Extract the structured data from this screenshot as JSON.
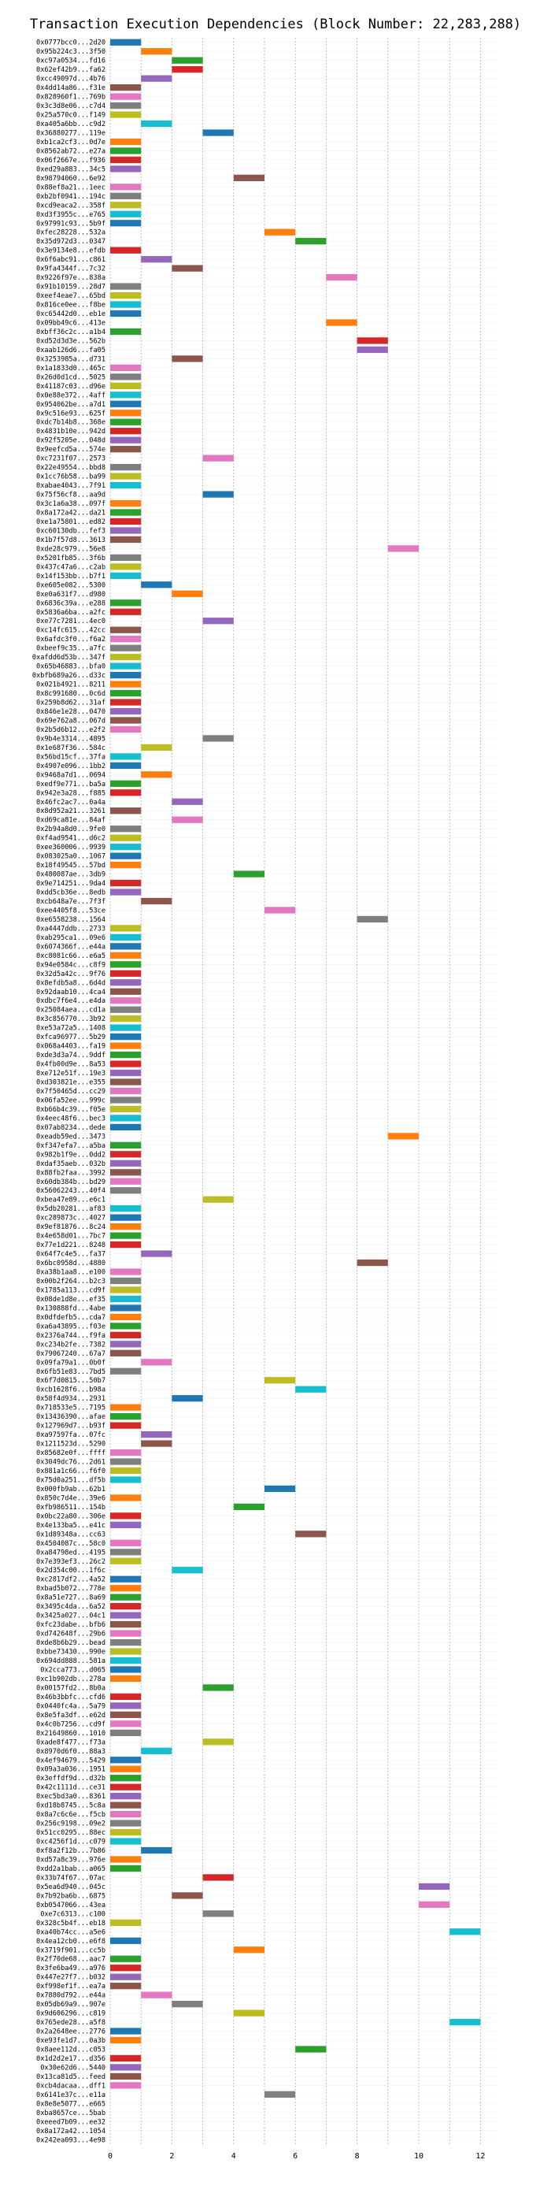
{
  "chart_data": {
    "type": "bar",
    "orientation": "horizontal-gantt",
    "title": "Transaction Execution Dependencies (Block Number: 22,283,288)",
    "xlabel": "",
    "ylabel": "",
    "xlim": [
      0,
      12.5
    ],
    "xticks": [
      0,
      2,
      4,
      6,
      8,
      10,
      12
    ],
    "grid": true,
    "legend": "none",
    "bar_width": 1,
    "palette": {
      "blue": "#1f77b4",
      "orange": "#ff7f0e",
      "green": "#2ca02c",
      "red": "#d62728",
      "purple": "#9467bd",
      "brown": "#8c564b",
      "pink": "#e377c2",
      "gray": "#7f7f7f",
      "olive": "#bcbd22",
      "cyan": "#17becf"
    },
    "colors": [
      "#1f77b4",
      "#ff7f0e",
      "#2ca02c",
      "#d62728",
      "#9467bd",
      "#8c564b",
      "#e377c2",
      "#7f7f7f",
      "#bcbd22",
      "#17becf"
    ],
    "transactions": [
      "0x0777bcc0...2d20",
      "0x95b224c3...3f50",
      "0xc97a0534...fd16",
      "0x62ef42b9...fa62",
      "0xcc49097d...4b76",
      "0x4dd14a86...f31e",
      "0x828960f1...769b",
      "0x3c3d8e06...c7d4",
      "0x25a570c0...f149",
      "0xa405a6bb...c9d2",
      "0x36880277...119e",
      "0xb1ca2cf3...0d7e",
      "0x8562ab72...e27a",
      "0x06f2667e...f936",
      "0xed29a883...34c5",
      "0x98794060...6e92",
      "0x88ef8a21...1eec",
      "0xb2bf0941...194c",
      "0xcd9eaca2...358f",
      "0xd3f3955c...e765",
      "0x97991c93...5b9f",
      "0xfec28228...532a",
      "0x35d972d3...0347",
      "0x3e9134e8...efdb",
      "0x6f6abc91...c861",
      "0x9fa4344f...7c32",
      "0x9226f97e...838a",
      "0x91b10159...28d7",
      "0xeef4eae7...65bd",
      "0x816ce0ee...f8be",
      "0xc65442d0...eb1e",
      "0x09bb49c6...413e",
      "0xbff36c2c...a1b4",
      "0xd52d3d3e...562b",
      "0xaab126d6...fa05",
      "0x3253985a...d731",
      "0x1a1833d0...465c",
      "0x26d0d1cd...5025",
      "0x41187c03...d96e",
      "0x0e88e372...4aff",
      "0x954062be...a7d1",
      "0x9c516e93...625f",
      "0xdc7b14b8...368e",
      "0x4831b10e...942d",
      "0x92f5205e...048d",
      "0x9eefcd5a...574e",
      "0xc7231f07...2573",
      "0x22e49554...bbd8",
      "0x1cc76b58...ba99",
      "0xabae4043...7f91",
      "0x75f56cf8...aa9d",
      "0x3c1a6a38...097f",
      "0x8a172a42...da21",
      "0xe1a75801...ed82",
      "0xc60130db...fef3",
      "0x1b7f57d8...3613",
      "0xde28c979...56e8",
      "0x5201fb85...3f6b",
      "0x437c47a6...c2ab",
      "0x14f153bb...b7f1",
      "0xe605e082...5300",
      "0xe0a631f7...d980",
      "0x6836c39a...e288",
      "0x5836a6ba...a2fc",
      "0xe77c7281...4ec0",
      "0xc14fc615...42cc",
      "0x6afdc3f0...f6a2",
      "0xbeef9c35...a7fc",
      "0xafdd6d53b...347f",
      "0x65b46883...bfa0",
      "0xbfb689a26...d33c",
      "0x021b4921...8211",
      "0x8c991680...0c6d",
      "0x259b8d62...31af",
      "0x846e1e28...0470",
      "0x69e762a8...067d",
      "0x2b5d6b12...e2f2",
      "0x9b4e3314...4895",
      "0x1e687f36...584c",
      "0x56bd15cf...37fa",
      "0x4907e096...1bb2",
      "0x9468a7d1...0694",
      "0xedf9e771...ba5a",
      "0x942e3a28...f885",
      "0x46fc2ac7...0a4a",
      "0x8d952a21...3261",
      "0xd69ca81e...84af",
      "0x2b94a8d0...9fe0",
      "0xf4ad9541...d6c2",
      "0xee360006...9939",
      "0x083025a0...1067",
      "0x18f49545...57bd",
      "0x480087ae...3db9",
      "0x9e714251...9da4",
      "0xdd5cb36e...8edb",
      "0xcb648a7e...7f3f",
      "0xee4405f8...53ce",
      "0xe6558238...1564",
      "0xa4447ddb...2733",
      "0xab295ca1...09e6",
      "0x6074366f...e44a",
      "0xc8081c66...e6a5",
      "0x94e0584c...c8f9",
      "0x32d5a42c...9f76",
      "0x8efdb5a8...6d4d",
      "0x92daab10...4ca4",
      "0xdbc7f6e4...e4da",
      "0x25084aea...cd1a",
      "0x3c856770...3b92",
      "0xe53a72a5...1408",
      "0xfca96977...5b29",
      "0x068a4403...fa19",
      "0xde3d3a74...9ddf",
      "0x4fb00d9e...8a53",
      "0xe712e51f...19e3",
      "0xd303821e...e355",
      "0x7f50465d...cc29",
      "0x06fa52ee...999c",
      "0xb66b4c39...f05e",
      "0x4eec48f6...bec3",
      "0x07ab8234...dede",
      "0xeadb59ed...3473",
      "0xf347efa7...a5ba",
      "0x982b1f9e...0dd2",
      "0xdaf35aeb...032b",
      "0x88fb2faa...3992",
      "0x60db384b...bd29",
      "0x56062243...40f4",
      "0xbea47e89...e6c1",
      "0x5db20281...af83",
      "0xc289873c...4027",
      "0x9ef81876...8c24",
      "0x4e658d01...7bc7",
      "0x77e1d221...8248",
      "0x64f7c4e5...fa37",
      "0x6bc0958d...4880",
      "0xa38b1aa8...e100",
      "0x00b2f264...b2c3",
      "0x1785a113...cd9f",
      "0x08de1d8e...ef35",
      "0x130888fd...4abe",
      "0x0dfdefb5...cda7",
      "0xa6a43895...f03e",
      "0x2376a744...f9fa",
      "0xc234b2fe...7382",
      "0x79067240...67a7",
      "0x09fa79a1...0b0f",
      "0x6fb51e83...7bd5",
      "0x6f7d0815...50b7",
      "0xcb1628f6...b98a",
      "0x58f4d934...2931",
      "0x718533e5...7195",
      "0x13436390...afae",
      "0x127969d7...b93f",
      "0xa97597fa...07fc",
      "0x1211523d...5290",
      "0x85682e0f...ffff",
      "0x3049dc76...2d61",
      "0x881a1c66...f6f0",
      "0x75d0a251...df5b",
      "0x000fb9ab...62b1",
      "0x850c7d4e...39e6",
      "0xfb986511...154b",
      "0x0bc22a80...306e",
      "0x4e133ba5...e41c",
      "0x1d89348a...cc63",
      "0x4504087c...58c0",
      "0xa84798ed...4195",
      "0x7e393ef3...26c2",
      "0x2d354c00...1f6c",
      "0xc2817df2...4a52",
      "0xbad5b072...778e",
      "0x8a51e727...8a69",
      "0x3495c4da...6a52",
      "0x3425a027...04c1",
      "0xfc23dabe...bfb6",
      "0xd742648f...29b6",
      "0xde8b6b29...bead",
      "0xbbe73430...990e",
      "0x694dd888...581a",
      "0x2cca773...d065",
      "0xc1b902db...278a",
      "0x00157fd2...8b0a",
      "0x46b3bbfc...cfd6",
      "0x0440fc4a...5a79",
      "0x8e5fa3df...e62d",
      "0x4c0b7256...cd9f",
      "0x21649860...1010",
      "0xade8f477...f73a",
      "0x8970d6f0...88a3",
      "0x4ef94679...5429",
      "0x09a3a036...1951",
      "0x3effdf9d...d32b",
      "0x42c1111d...ce31",
      "0xec5bd3a0...8361",
      "0xd18b8745...5c8a",
      "0x8a7c6c6e...f5cb",
      "0x256c9198...09e2",
      "0x51cc0295...88ec",
      "0xc4256f1d...c079",
      "0xf8a2f12b...7b86",
      "0xd57a8c39...976e",
      "0xdd2a1bab...a065",
      "0x33b74f67...07ac",
      "0x5ea6d940...045c",
      "0x7b92ba6b...6875",
      "0xb0547066...43ea",
      "0xe7c6313...c100",
      "0x328c5b4f...eb18",
      "0xa40b74cc...a5e6",
      "0x4ea12cb0...e6f8",
      "0x3719f901...cc5b",
      "0x2f70de68...aac7",
      "0x3fe6ba49...a976",
      "0x447e27f7...b032",
      "0xf998ef1f...ea7a",
      "0x7880d792...e44a",
      "0x05db69a9...907e",
      "0x9d606296...c819",
      "0x765ede28...a5f8",
      "0x2a2648ee...2776",
      "0xe93fe1d7...0a3b",
      "0x8aee112d...c053",
      "0x1d2d2e17...d356",
      "0x30e62d6...5440",
      "0x13ca81d5...feed",
      "0xcb4dacaa...dff1",
      "0x6141e37c...e11a",
      "0x8e8e5077...e665",
      "0xba8657ce...5bab",
      "0xeeed7b09...ee32",
      "0x8a172a42...1054",
      "0x242ea093...4e98"
    ],
    "start_times": [
      0,
      1,
      2,
      2,
      1,
      0,
      0,
      0,
      0,
      1,
      3,
      0,
      0,
      0,
      0,
      4,
      0,
      0,
      0,
      0,
      0,
      5,
      6,
      0,
      1,
      2,
      7,
      0,
      0,
      0,
      0,
      7,
      0,
      8,
      8,
      2,
      0,
      0,
      0,
      0,
      0,
      0,
      0,
      0,
      0,
      0,
      3,
      0,
      0,
      0,
      3,
      0,
      0,
      0,
      0,
      0,
      9,
      0,
      0,
      0,
      1,
      2,
      0,
      0,
      3,
      0,
      0,
      0,
      0,
      0,
      0,
      0,
      0,
      0,
      0,
      0,
      0,
      3,
      1,
      0,
      0,
      1,
      0,
      0,
      2,
      0,
      2,
      0,
      0,
      0,
      0,
      0,
      4,
      0,
      0,
      1,
      5,
      8,
      0,
      0,
      0,
      0,
      0,
      0,
      0,
      0,
      0,
      0,
      0,
      0,
      0,
      0,
      0,
      0,
      0,
      0,
      0,
      0,
      0,
      0,
      0,
      9,
      0,
      0,
      0,
      0,
      0,
      0,
      3,
      0,
      0,
      0,
      0,
      0,
      1,
      8,
      0,
      0,
      0,
      0,
      0,
      0,
      0,
      0,
      0,
      0,
      1,
      0,
      5,
      6,
      2,
      0,
      0,
      0,
      1,
      1,
      0,
      0,
      0,
      0,
      5,
      0,
      4,
      0,
      0,
      6,
      0,
      0,
      0,
      2,
      0,
      0,
      0,
      0,
      0,
      0,
      0,
      0,
      0,
      0,
      0,
      0,
      3,
      0,
      0,
      0,
      0,
      0,
      3,
      1,
      0,
      0,
      0,
      0,
      0,
      0,
      0,
      0,
      0,
      0,
      1,
      0,
      0,
      3,
      10,
      2,
      10,
      3,
      0,
      11,
      0,
      4,
      0,
      0,
      0,
      0,
      1,
      2,
      4,
      11,
      0,
      0,
      6,
      0,
      0,
      0,
      0,
      5
    ],
    "color_index": [
      0,
      1,
      2,
      3,
      4,
      5,
      6,
      7,
      8,
      9,
      0,
      1,
      2,
      3,
      4,
      5,
      6,
      7,
      8,
      9,
      0,
      1,
      2,
      3,
      4,
      5,
      6,
      7,
      8,
      9,
      0,
      1,
      2,
      3,
      4,
      5,
      6,
      7,
      8,
      9,
      0,
      1,
      2,
      3,
      4,
      5,
      6,
      7,
      8,
      9,
      0,
      1,
      2,
      3,
      4,
      5,
      6,
      7,
      8,
      9,
      0,
      1,
      2,
      3,
      4,
      5,
      6,
      7,
      8,
      9,
      0,
      1,
      2,
      3,
      4,
      5,
      6,
      7,
      8,
      9,
      0,
      1,
      2,
      3,
      4,
      5,
      6,
      7,
      8,
      9,
      0,
      1,
      2,
      3,
      4,
      5,
      6,
      7,
      8,
      9,
      0,
      1,
      2,
      3,
      4,
      5,
      6,
      7,
      8,
      9,
      0,
      1,
      2,
      3,
      4,
      5,
      6,
      7,
      8,
      9,
      0,
      1,
      2,
      3,
      4,
      5,
      6,
      7,
      8,
      9,
      0,
      1,
      2,
      3,
      4,
      5,
      6,
      7,
      8,
      9,
      0,
      1,
      2,
      3,
      4,
      5,
      6,
      7,
      8,
      9,
      0,
      1,
      2,
      3,
      4,
      5,
      6,
      7,
      8,
      9,
      0,
      1,
      2,
      3,
      4,
      5,
      6,
      7,
      8,
      9,
      0,
      1,
      2,
      3,
      4,
      5,
      6,
      7,
      8,
      9,
      0,
      1,
      2,
      3,
      4,
      5,
      6,
      7,
      8,
      9,
      0,
      1,
      2,
      3,
      4,
      5,
      6,
      7,
      8,
      9,
      0,
      1,
      2,
      3,
      4,
      5,
      6,
      7,
      8,
      9,
      0,
      1,
      2,
      3,
      4,
      5,
      6,
      7,
      8,
      9,
      0,
      1,
      2,
      3,
      4,
      5,
      6,
      7
    ]
  }
}
